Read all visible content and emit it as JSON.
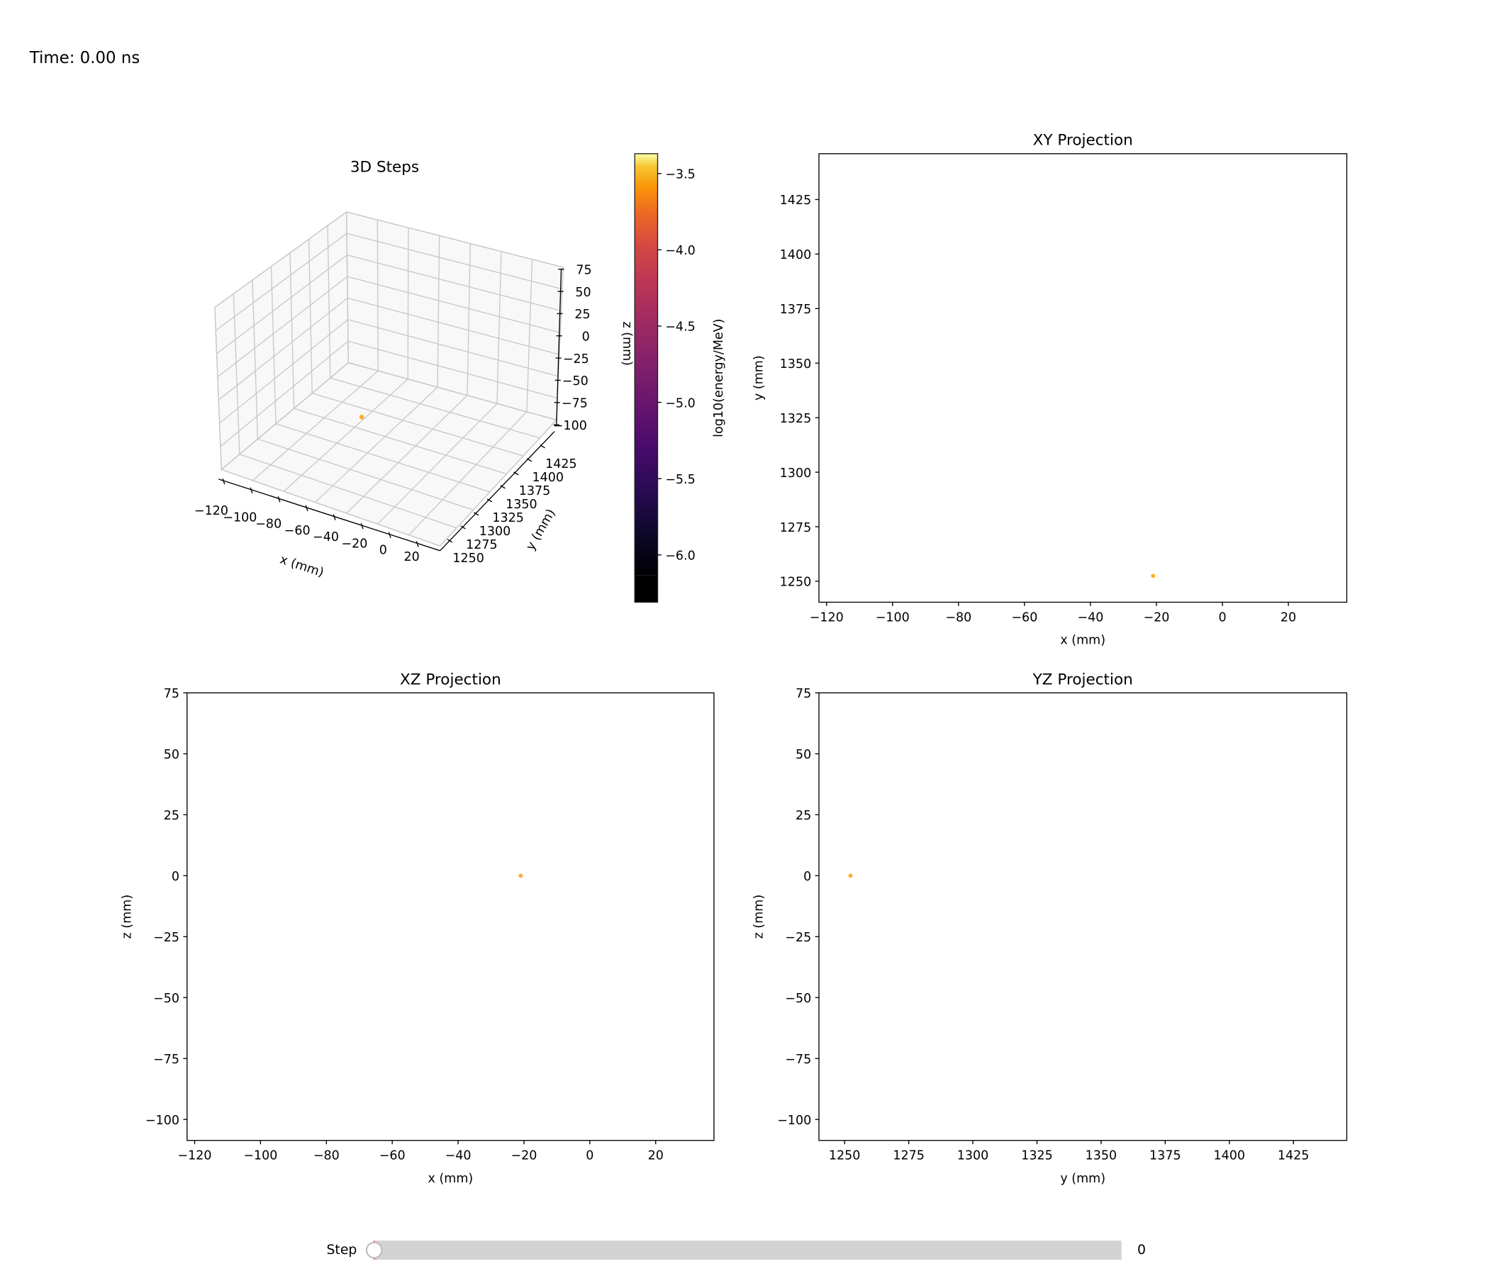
{
  "header": {
    "time_label": "Time: 0.00 ns"
  },
  "slider": {
    "label": "Step",
    "value_text": "0",
    "value": 0,
    "min": 0,
    "max": 0,
    "track_color": "#d3d3d3"
  },
  "colorbar": {
    "label": "log10(energy/MeV)",
    "range": [
      -6.31,
      -3.37
    ],
    "ticks": [
      -3.5,
      -4.0,
      -4.5,
      -5.0,
      -5.5,
      -6.0
    ],
    "tick_labels": [
      "−3.5",
      "−4.0",
      "−4.5",
      "−5.0",
      "−5.5",
      "−6.0"
    ],
    "colormap": "inferno"
  },
  "chart_data": [
    {
      "id": "3d",
      "type": "scatter",
      "title": "3D Steps",
      "xlabel": "x (mm)",
      "ylabel": "y (mm)",
      "zlabel": "z (mm)",
      "x_tick_labels": [
        "−120",
        "−100",
        "−80",
        "−60",
        "−40",
        "−20",
        "0",
        "20"
      ],
      "y_tick_labels": [
        "1250",
        "1275",
        "1300",
        "1325",
        "1350",
        "1375",
        "1400",
        "1425"
      ],
      "z_tick_labels": [
        "75",
        "50",
        "25",
        "0",
        "−25",
        "−50",
        "−75",
        "−100"
      ],
      "points": [
        {
          "x": -21,
          "y": 1252,
          "z": 0,
          "c": -3.8
        }
      ],
      "point_color": "#f8b02a"
    },
    {
      "id": "xy",
      "type": "scatter",
      "title": "XY Projection",
      "xlabel": "x (mm)",
      "ylabel": "y (mm)",
      "xlim": [
        -122.3,
        37.7
      ],
      "ylim": [
        1240.4,
        1446
      ],
      "xticks": [
        -120,
        -100,
        -80,
        -60,
        -40,
        -20,
        0,
        20
      ],
      "yticks": [
        1250,
        1275,
        1300,
        1325,
        1350,
        1375,
        1400,
        1425
      ],
      "points": [
        {
          "x": -21,
          "y": 1252.5
        }
      ],
      "point_color": "#f8b02a"
    },
    {
      "id": "xz",
      "type": "scatter",
      "title": "XZ Projection",
      "xlabel": "x (mm)",
      "ylabel": "z (mm)",
      "xlim": [
        -122.3,
        37.7
      ],
      "ylim": [
        -108.6,
        75
      ],
      "xticks": [
        -120,
        -100,
        -80,
        -60,
        -40,
        -20,
        0,
        20
      ],
      "yticks": [
        75,
        50,
        25,
        0,
        -25,
        -50,
        -75,
        -100
      ],
      "points": [
        {
          "x": -21,
          "y": 0
        }
      ],
      "point_color": "#f8b02a"
    },
    {
      "id": "yz",
      "type": "scatter",
      "title": "YZ Projection",
      "xlabel": "y (mm)",
      "ylabel": "z (mm)",
      "xlim": [
        1240,
        1445.8
      ],
      "ylim": [
        -108.6,
        75
      ],
      "xticks": [
        1250,
        1275,
        1300,
        1325,
        1350,
        1375,
        1400,
        1425
      ],
      "yticks": [
        75,
        50,
        25,
        0,
        -25,
        -50,
        -75,
        -100
      ],
      "points": [
        {
          "x": 1252.3,
          "y": 0
        }
      ],
      "point_color": "#f8b02a"
    }
  ]
}
